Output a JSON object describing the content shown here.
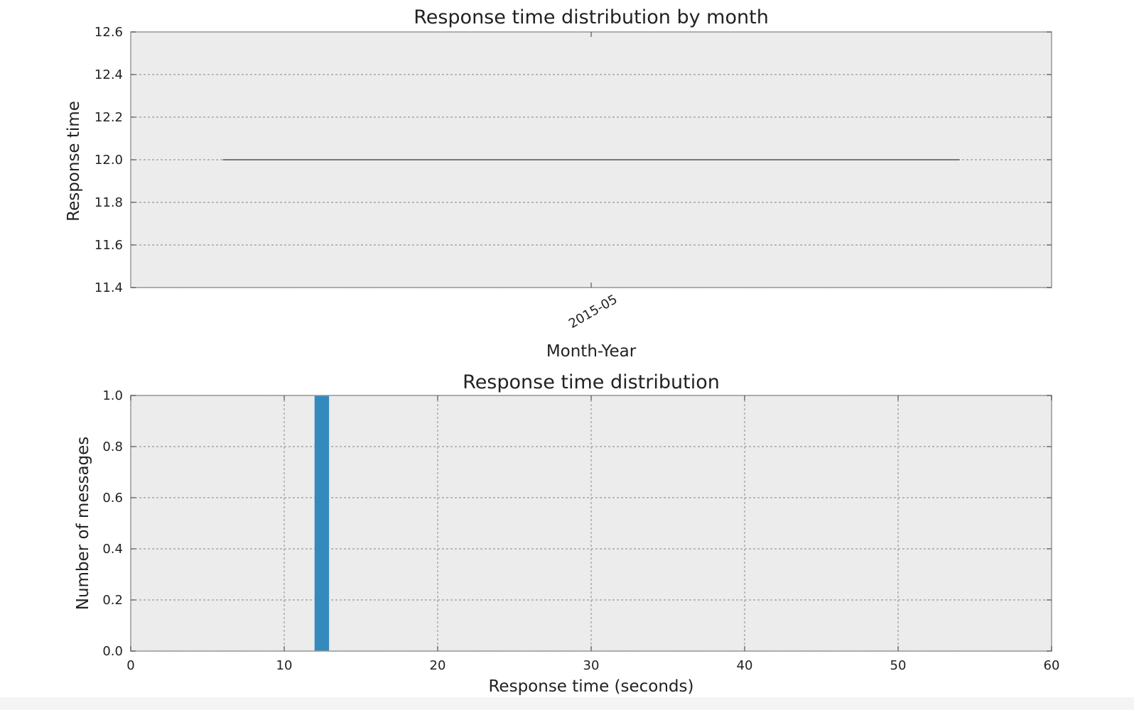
{
  "chart_data": [
    {
      "type": "box",
      "title": "Response time distribution by month",
      "xlabel": "Month-Year",
      "ylabel": "Response time",
      "categories": [
        "2015-05"
      ],
      "series": [
        {
          "values": [
            12.0
          ]
        }
      ],
      "ylim": [
        11.4,
        12.6
      ],
      "yticks": [
        12.6,
        12.4,
        12.2,
        12.0,
        11.8,
        11.6,
        11.4
      ],
      "ytick_labels": [
        "12.6",
        "12.4",
        "12.2",
        "12.0",
        "11.8",
        "11.6",
        "11.4"
      ],
      "grid": true,
      "colors": {
        "background": "#ececec",
        "line": "#555555",
        "grid": "#999999"
      }
    },
    {
      "type": "bar",
      "title": "Response time distribution",
      "xlabel": "Response time (seconds)",
      "ylabel": "Number of messages",
      "bins": [
        {
          "x0": 12.0,
          "x1": 12.9,
          "count": 1.0
        }
      ],
      "xlim": [
        0,
        60
      ],
      "ylim": [
        0.0,
        1.0
      ],
      "xticks": [
        0,
        10,
        20,
        30,
        40,
        50,
        60
      ],
      "xtick_labels": [
        "0",
        "10",
        "20",
        "30",
        "40",
        "50",
        "60"
      ],
      "yticks": [
        1.0,
        0.8,
        0.6,
        0.4,
        0.2,
        0.0
      ],
      "ytick_labels": [
        "1.0",
        "0.8",
        "0.6",
        "0.4",
        "0.2",
        "0.0"
      ],
      "grid": true,
      "colors": {
        "background": "#ececec",
        "bar": "#348abd",
        "grid": "#999999"
      }
    }
  ]
}
